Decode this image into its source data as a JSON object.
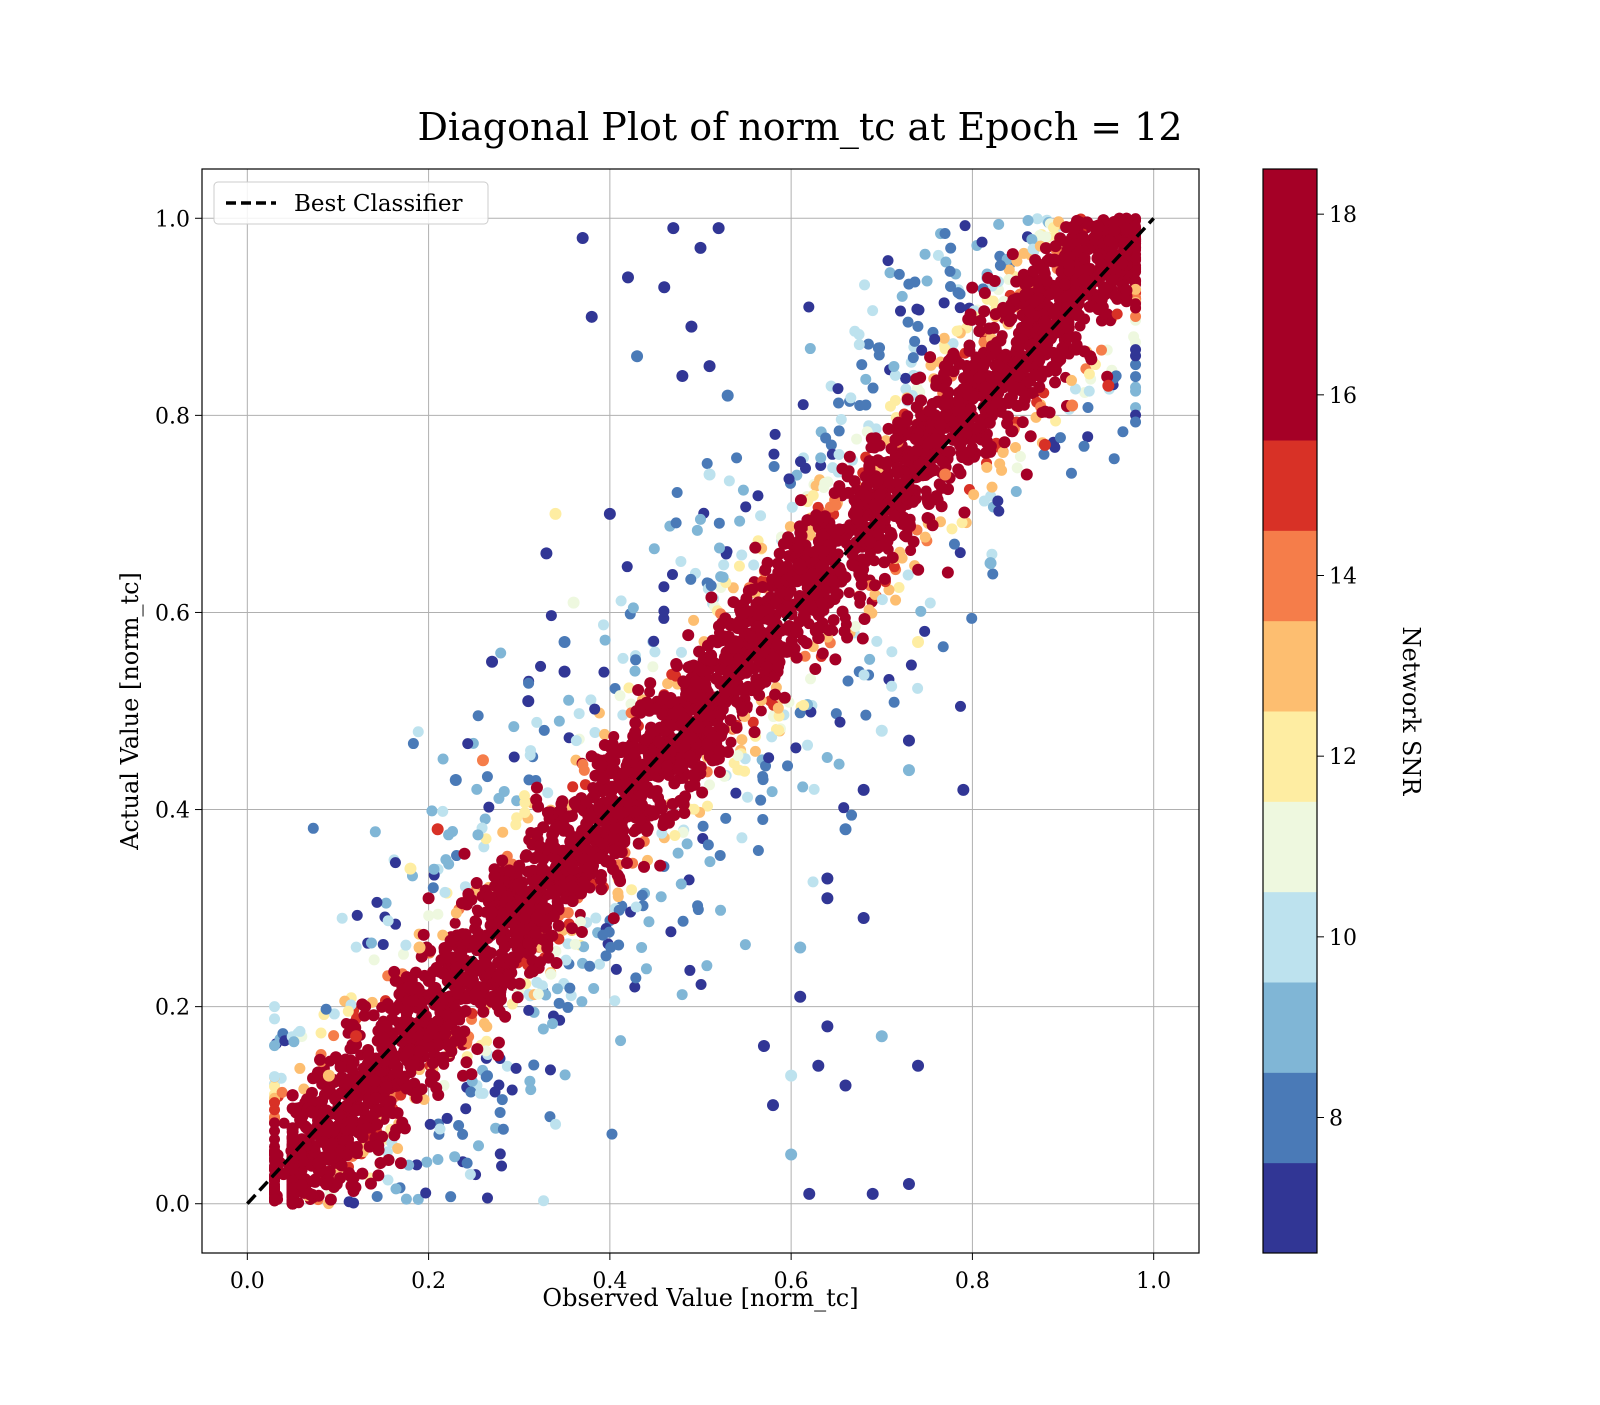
{
  "chart_data": {
    "type": "scatter",
    "title": "Diagonal Plot of norm_tc at Epoch = 12",
    "xlabel": "Observed Value [norm_tc]",
    "ylabel": "Actual Value [norm_tc]",
    "xlim": [
      -0.05,
      1.05
    ],
    "ylim": [
      -0.05,
      1.05
    ],
    "x_ticks": [
      "0.0",
      "0.2",
      "0.4",
      "0.6",
      "0.8",
      "1.0"
    ],
    "y_ticks": [
      "0.0",
      "0.2",
      "0.4",
      "0.6",
      "0.8",
      "1.0"
    ],
    "grid": true,
    "legend": {
      "placement": "upper-left",
      "entries": [
        {
          "label": "Best Classifier",
          "style": "dashed",
          "color": "#000000"
        }
      ]
    },
    "reference_line": {
      "name": "Best Classifier",
      "x": [
        0.0,
        1.0
      ],
      "y": [
        0.0,
        1.0
      ],
      "color": "#000000",
      "style": "dashed"
    },
    "colorbar": {
      "label": "Network SNR",
      "range": [
        7,
        19
      ],
      "ticks": [
        "8",
        "10",
        "12",
        "14",
        "16",
        "18"
      ],
      "bins": [
        {
          "from": 7,
          "to": 8,
          "color": "#313695"
        },
        {
          "from": 8,
          "to": 9,
          "color": "#4a7ab7"
        },
        {
          "from": 9,
          "to": 10,
          "color": "#80b6d6"
        },
        {
          "from": 10,
          "to": 11,
          "color": "#bde2ee"
        },
        {
          "from": 11,
          "to": 12,
          "color": "#eef8df"
        },
        {
          "from": 12,
          "to": 13,
          "color": "#feeda2"
        },
        {
          "from": 13,
          "to": 14,
          "color": "#fdbe70"
        },
        {
          "from": 14,
          "to": 15,
          "color": "#f57d4a"
        },
        {
          "from": 15,
          "to": 16,
          "color": "#d83126"
        },
        {
          "from": 16,
          "to": 19,
          "color": "#a50026"
        }
      ]
    },
    "series": [
      {
        "color_by": "network_snr",
        "description_of_distribution": "dense band of high-SNR points along y=x with low-SNR outliers spreading above-left of the diagonal at high y and below-right at low y",
        "points": [
          {
            "x": 0.37,
            "y": 0.98,
            "snr": 7.5
          },
          {
            "x": 0.42,
            "y": 0.94,
            "snr": 7.5
          },
          {
            "x": 0.38,
            "y": 0.9,
            "snr": 7.5
          },
          {
            "x": 0.46,
            "y": 0.93,
            "snr": 7.5
          },
          {
            "x": 0.43,
            "y": 0.86,
            "snr": 8.5
          },
          {
            "x": 0.49,
            "y": 0.89,
            "snr": 7.5
          },
          {
            "x": 0.47,
            "y": 0.99,
            "snr": 7.5
          },
          {
            "x": 0.5,
            "y": 0.97,
            "snr": 7.5
          },
          {
            "x": 0.52,
            "y": 0.99,
            "snr": 7.5
          },
          {
            "x": 0.51,
            "y": 0.85,
            "snr": 7.5
          },
          {
            "x": 0.48,
            "y": 0.84,
            "snr": 7.5
          },
          {
            "x": 0.53,
            "y": 0.82,
            "snr": 8.5
          },
          {
            "x": 0.51,
            "y": 0.74,
            "snr": 10.5
          },
          {
            "x": 0.34,
            "y": 0.7,
            "snr": 12.5
          },
          {
            "x": 0.4,
            "y": 0.7,
            "snr": 7.5
          },
          {
            "x": 0.33,
            "y": 0.66,
            "snr": 7.5
          },
          {
            "x": 0.36,
            "y": 0.61,
            "snr": 11.5
          },
          {
            "x": 0.35,
            "y": 0.57,
            "snr": 8.5
          },
          {
            "x": 0.27,
            "y": 0.55,
            "snr": 7.5
          },
          {
            "x": 0.35,
            "y": 0.54,
            "snr": 7.5
          },
          {
            "x": 0.31,
            "y": 0.51,
            "snr": 7.5
          },
          {
            "x": 0.26,
            "y": 0.45,
            "snr": 14.5
          },
          {
            "x": 0.23,
            "y": 0.43,
            "snr": 8.5
          },
          {
            "x": 0.21,
            "y": 0.38,
            "snr": 15.5
          },
          {
            "x": 0.18,
            "y": 0.34,
            "snr": 12.5
          },
          {
            "x": 0.2,
            "y": 0.31,
            "snr": 16.5
          },
          {
            "x": 0.19,
            "y": 0.26,
            "snr": 13.5
          },
          {
            "x": 0.13,
            "y": 0.2,
            "snr": 17.5
          },
          {
            "x": 0.12,
            "y": 0.17,
            "snr": 15.5
          },
          {
            "x": 0.09,
            "y": 0.13,
            "snr": 13.5
          },
          {
            "x": 0.04,
            "y": 0.03,
            "snr": 17.5
          },
          {
            "x": 0.79,
            "y": 0.42,
            "snr": 7.5
          },
          {
            "x": 0.73,
            "y": 0.47,
            "snr": 7.5
          },
          {
            "x": 0.73,
            "y": 0.44,
            "snr": 9.5
          },
          {
            "x": 0.7,
            "y": 0.48,
            "snr": 10.5
          },
          {
            "x": 0.68,
            "y": 0.42,
            "snr": 7.5
          },
          {
            "x": 0.66,
            "y": 0.38,
            "snr": 8.5
          },
          {
            "x": 0.64,
            "y": 0.33,
            "snr": 7.5
          },
          {
            "x": 0.68,
            "y": 0.29,
            "snr": 7.5
          },
          {
            "x": 0.64,
            "y": 0.31,
            "snr": 7.5
          },
          {
            "x": 0.61,
            "y": 0.26,
            "snr": 9.5
          },
          {
            "x": 0.61,
            "y": 0.21,
            "snr": 7.5
          },
          {
            "x": 0.64,
            "y": 0.18,
            "snr": 7.5
          },
          {
            "x": 0.7,
            "y": 0.17,
            "snr": 9.5
          },
          {
            "x": 0.74,
            "y": 0.14,
            "snr": 7.5
          },
          {
            "x": 0.63,
            "y": 0.14,
            "snr": 7.5
          },
          {
            "x": 0.66,
            "y": 0.12,
            "snr": 7.5
          },
          {
            "x": 0.6,
            "y": 0.13,
            "snr": 10.5
          },
          {
            "x": 0.73,
            "y": 0.02,
            "snr": 7.5
          },
          {
            "x": 0.69,
            "y": 0.01,
            "snr": 7.5
          },
          {
            "x": 0.6,
            "y": 0.05,
            "snr": 9.5
          },
          {
            "x": 0.62,
            "y": 0.01,
            "snr": 7.5
          },
          {
            "x": 0.58,
            "y": 0.1,
            "snr": 7.5
          },
          {
            "x": 0.57,
            "y": 0.16,
            "snr": 7.5
          },
          {
            "x": 0.76,
            "y": 0.83,
            "snr": 17.5
          },
          {
            "x": 0.82,
            "y": 0.65,
            "snr": 9.5
          },
          {
            "x": 0.77,
            "y": 0.74,
            "snr": 14.5
          },
          {
            "x": 0.86,
            "y": 0.74,
            "snr": 16.5
          },
          {
            "x": 0.88,
            "y": 0.77,
            "snr": 15.5
          },
          {
            "x": 0.91,
            "y": 0.81,
            "snr": 14.5
          },
          {
            "x": 0.93,
            "y": 0.86,
            "snr": 17.5
          },
          {
            "x": 0.95,
            "y": 0.83,
            "snr": 15.5
          },
          {
            "x": 0.74,
            "y": 0.57,
            "snr": 12.5
          }
        ]
      }
    ]
  }
}
